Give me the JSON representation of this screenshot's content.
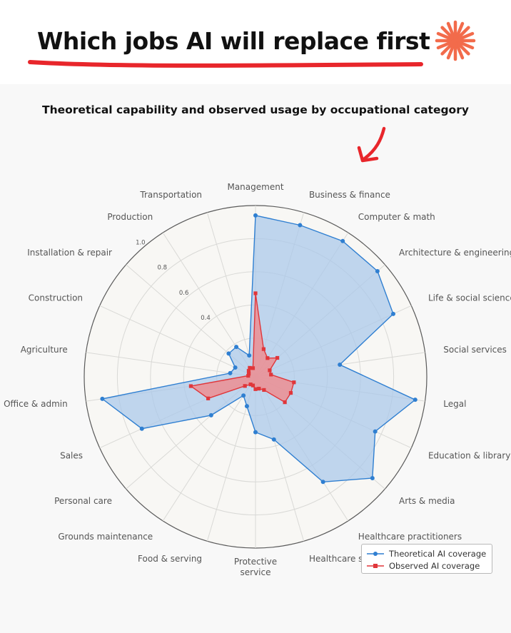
{
  "headline": "Which jobs AI will replace first",
  "colors": {
    "theoretical": "#2f7fd1",
    "theoretical_fill": "#a9c8ea",
    "observed": "#e0363a",
    "observed_fill": "#f08a8c",
    "accent_underline": "#e8262b",
    "star": "#f26b4b"
  },
  "chart_data": {
    "type": "radar",
    "title": "Theoretical capability and observed usage by occupational category",
    "categories": [
      "Management",
      "Business & finance",
      "Computer & math",
      "Architecture & engineering",
      "Life & social sciences",
      "Social services",
      "Legal",
      "Education & library",
      "Arts & media",
      "Healthcare practitioners",
      "Healthcare support",
      "Protective service",
      "Food & serving",
      "Grounds maintenance",
      "Personal care",
      "Sales",
      "Office & admin",
      "Agriculture",
      "Construction",
      "Installation & repair",
      "Production",
      "Transportation"
    ],
    "radial_ticks": [
      "0.4",
      "0.6",
      "0.8",
      "1.0"
    ],
    "radial_range": [
      0,
      1
    ],
    "grid": true,
    "legend_position": "bottom-right",
    "series": [
      {
        "name": "Theoretical AI coverage",
        "values": [
          0.94,
          0.92,
          0.94,
          0.94,
          0.88,
          0.48,
          0.94,
          0.76,
          0.9,
          0.72,
          0.36,
          0.3,
          0.15,
          0.1,
          0.32,
          0.72,
          0.9,
          0.12,
          0.1,
          0.18,
          0.18,
          0.1
        ]
      },
      {
        "name": "Observed AI coverage",
        "values": [
          0.47,
          0.14,
          0.1,
          0.14,
          0.06,
          0.06,
          0.2,
          0.2,
          0.2,
          0.06,
          0.04,
          0.04,
          0.02,
          0.02,
          0.05,
          0.28,
          0.36,
          0.01,
          0.01,
          0.02,
          0.03,
          0.02
        ]
      }
    ]
  },
  "legend": {
    "theoretical_label": "Theoretical AI coverage",
    "observed_label": "Observed AI coverage"
  }
}
